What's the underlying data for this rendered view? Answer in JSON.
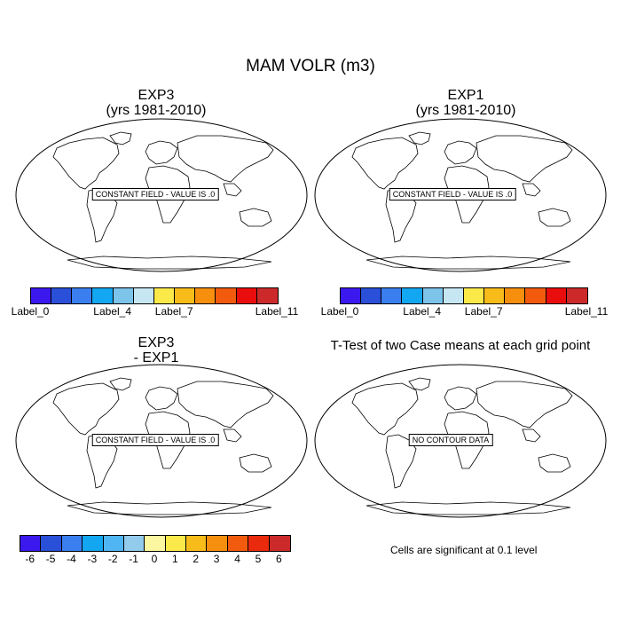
{
  "title": "MAM VOLR (m3)",
  "panels": {
    "top_left": {
      "title_line1": "EXP3",
      "title_line2": "(yrs 1981-2010)",
      "note": "CONSTANT FIELD - VALUE IS .0"
    },
    "top_right": {
      "title_line1": "EXP1",
      "title_line2": "(yrs 1981-2010)",
      "note": "CONSTANT FIELD - VALUE IS .0"
    },
    "bottom_left": {
      "title_line1": "EXP3",
      "title_line2": "- EXP1",
      "note": "CONSTANT FIELD - VALUE IS .0"
    },
    "bottom_right": {
      "title_line1": "T-Test of two Case means at each grid point",
      "note": "NO CONTOUR DATA"
    }
  },
  "colorbar_top": {
    "colors": [
      "#3b18ee",
      "#2a4fd9",
      "#3a7ef0",
      "#13a6f1",
      "#7cc4ea",
      "#c6e6f4",
      "#fbe94a",
      "#f8bc1a",
      "#f68e0e",
      "#f25b0d",
      "#ea0d0d",
      "#cc2a2a"
    ],
    "labels": [
      "Label_0",
      "Label_4",
      "Label_7",
      "Label_11"
    ],
    "label_index": [
      0,
      4,
      7,
      11
    ]
  },
  "colorbar_diff": {
    "colors": [
      "#3b18ee",
      "#2a4fd9",
      "#3a7ef0",
      "#13a6f1",
      "#4fb6f3",
      "#93cbed",
      "#fbf6a0",
      "#fbe94a",
      "#f8bc1a",
      "#f68e0e",
      "#f25b0d",
      "#ea2a0d",
      "#cc2a2a"
    ],
    "labels": [
      "-6",
      "-5",
      "-4",
      "-3",
      "-2",
      "-1",
      "0",
      "1",
      "2",
      "3",
      "4",
      "5",
      "6"
    ]
  },
  "significance_note": "Cells are significant at 0.1 level"
}
